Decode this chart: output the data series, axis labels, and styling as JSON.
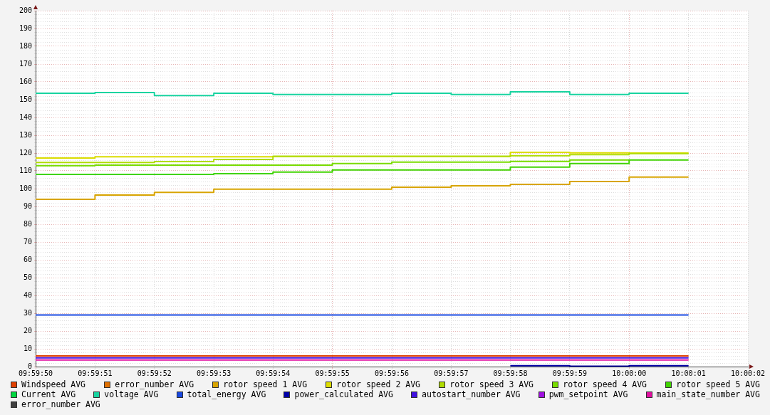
{
  "chart_data": {
    "type": "step",
    "x": [
      9.997222,
      9.9975,
      9.997778,
      9.998056,
      9.998333,
      9.998611,
      9.998889,
      9.999167,
      9.999444,
      9.999722,
      10,
      10.000278
    ],
    "xlim": [
      9.997222,
      10.000556
    ],
    "xticks": [
      {
        "value": 9.997222,
        "label": "09:59:50"
      },
      {
        "value": 9.9975,
        "label": "09:59:51"
      },
      {
        "value": 9.997778,
        "label": "09:59:52"
      },
      {
        "value": 9.998056,
        "label": "09:59:53"
      },
      {
        "value": 9.998333,
        "label": "09:59:54"
      },
      {
        "value": 9.998611,
        "label": "09:59:55"
      },
      {
        "value": 9.998889,
        "label": "09:59:56"
      },
      {
        "value": 9.999167,
        "label": "09:59:57"
      },
      {
        "value": 9.999444,
        "label": "09:59:58"
      },
      {
        "value": 9.999722,
        "label": "09:59:59"
      },
      {
        "value": 10,
        "label": "10:00:00"
      },
      {
        "value": 10.000278,
        "label": "10:00:01"
      },
      {
        "value": 10.000556,
        "label": "10:00:02"
      }
    ],
    "ylim": [
      0,
      200
    ],
    "yticks": [
      0,
      {
        "value": 2,
        "label": null
      },
      {
        "value": 4,
        "label": null
      },
      {
        "value": 6,
        "label": null
      },
      {
        "value": 8,
        "label": null
      },
      10,
      {
        "value": 12,
        "label": null
      },
      {
        "value": 14,
        "label": null
      },
      {
        "value": 16,
        "label": null
      },
      {
        "value": 18,
        "label": null
      },
      20,
      {
        "value": 22,
        "label": null
      },
      {
        "value": 24,
        "label": null
      },
      {
        "value": 26,
        "label": null
      },
      {
        "value": 28,
        "label": null
      },
      30,
      {
        "value": 32,
        "label": null
      },
      {
        "value": 34,
        "label": null
      },
      {
        "value": 36,
        "label": null
      },
      {
        "value": 38,
        "label": null
      },
      40,
      {
        "value": 42,
        "label": null
      },
      {
        "value": 44,
        "label": null
      },
      {
        "value": 46,
        "label": null
      },
      {
        "value": 48,
        "label": null
      },
      50,
      {
        "value": 52,
        "label": null
      },
      {
        "value": 54,
        "label": null
      },
      {
        "value": 56,
        "label": null
      },
      {
        "value": 58,
        "label": null
      },
      60,
      {
        "value": 62,
        "label": null
      },
      {
        "value": 64,
        "label": null
      },
      {
        "value": 66,
        "label": null
      },
      {
        "value": 68,
        "label": null
      },
      70,
      {
        "value": 72,
        "label": null
      },
      {
        "value": 74,
        "label": null
      },
      {
        "value": 76,
        "label": null
      },
      {
        "value": 78,
        "label": null
      },
      80,
      {
        "value": 82,
        "label": null
      },
      {
        "value": 84,
        "label": null
      },
      {
        "value": 86,
        "label": null
      },
      {
        "value": 88,
        "label": null
      },
      90,
      {
        "value": 92,
        "label": null
      },
      {
        "value": 94,
        "label": null
      },
      {
        "value": 96,
        "label": null
      },
      {
        "value": 98,
        "label": null
      },
      100,
      {
        "value": 102,
        "label": null
      },
      {
        "value": 104,
        "label": null
      },
      {
        "value": 106,
        "label": null
      },
      {
        "value": 108,
        "label": null
      },
      110,
      {
        "value": 112,
        "label": null
      },
      {
        "value": 114,
        "label": null
      },
      {
        "value": 116,
        "label": null
      },
      {
        "value": 118,
        "label": null
      },
      120,
      {
        "value": 122,
        "label": null
      },
      {
        "value": 124,
        "label": null
      },
      {
        "value": 126,
        "label": null
      },
      {
        "value": 128,
        "label": null
      },
      130,
      {
        "value": 132,
        "label": null
      },
      {
        "value": 134,
        "label": null
      },
      {
        "value": 136,
        "label": null
      },
      {
        "value": 138,
        "label": null
      },
      140,
      {
        "value": 142,
        "label": null
      },
      {
        "value": 144,
        "label": null
      },
      {
        "value": 146,
        "label": null
      },
      {
        "value": 148,
        "label": null
      },
      150,
      {
        "value": 152,
        "label": null
      },
      {
        "value": 154,
        "label": null
      },
      {
        "value": 156,
        "label": null
      },
      {
        "value": 158,
        "label": null
      },
      160,
      {
        "value": 162,
        "label": null
      },
      {
        "value": 164,
        "label": null
      },
      {
        "value": 166,
        "label": null
      },
      {
        "value": 168,
        "label": null
      },
      170,
      {
        "value": 172,
        "label": null
      },
      {
        "value": 174,
        "label": null
      },
      {
        "value": 176,
        "label": null
      },
      {
        "value": 178,
        "label": null
      },
      180,
      {
        "value": 182,
        "label": null
      },
      {
        "value": 184,
        "label": null
      },
      {
        "value": 186,
        "label": null
      },
      {
        "value": 188,
        "label": null
      },
      190,
      {
        "value": 192,
        "label": null
      },
      {
        "value": 194,
        "label": null
      },
      {
        "value": 196,
        "label": null
      },
      {
        "value": 198,
        "label": null
      },
      200
    ],
    "grid": true,
    "legend": "bottom",
    "series": [
      {
        "name": "Windspeed AVG",
        "color": "#e04000",
        "values": [
          6.0,
          6.0,
          6.0,
          6.0,
          6.0,
          6.0,
          6.0,
          6.0,
          6.0,
          6.0,
          6.0,
          6.0
        ]
      },
      {
        "name": "error_number AVG",
        "color": "#e07000",
        "values": [
          null,
          null,
          null,
          null,
          null,
          null,
          null,
          null,
          null,
          null,
          null,
          null
        ]
      },
      {
        "name": "rotor speed 1 AVG",
        "color": "#d8a400",
        "values": [
          94.0,
          96.4,
          97.9,
          99.7,
          99.7,
          99.7,
          100.8,
          101.6,
          102.4,
          104.0,
          106.5,
          106.5
        ]
      },
      {
        "name": "rotor speed 2 AVG",
        "color": "#dcdc00",
        "values": [
          117.2,
          117.9,
          117.9,
          117.9,
          118.0,
          118.0,
          118.0,
          118.0,
          120.4,
          120.1,
          120.0,
          120.0
        ]
      },
      {
        "name": "rotor speed 3 AVG",
        "color": "#b0dc00",
        "values": [
          114.7,
          114.7,
          115.2,
          116.4,
          118.2,
          118.2,
          118.2,
          118.2,
          118.5,
          119.1,
          119.7,
          119.7
        ]
      },
      {
        "name": "rotor speed 4 AVG",
        "color": "#78dc00",
        "values": [
          112.9,
          113.2,
          113.2,
          113.2,
          113.2,
          114.1,
          114.9,
          114.9,
          115.3,
          116.1,
          116.1,
          null
        ]
      },
      {
        "name": "rotor speed 5 AVG",
        "color": "#40d400",
        "values": [
          108.0,
          108.0,
          108.0,
          108.4,
          109.3,
          110.5,
          110.5,
          110.5,
          112.1,
          114.1,
          116.1,
          116.1
        ]
      },
      {
        "name": "Current AVG",
        "color": "#00d840",
        "values": [
          null,
          null,
          null,
          null,
          null,
          null,
          null,
          null,
          null,
          null,
          null,
          null
        ]
      },
      {
        "name": "voltage AVG",
        "color": "#18d4a0",
        "values": [
          153.6,
          154.0,
          152.3,
          153.6,
          152.9,
          152.9,
          153.6,
          152.9,
          154.4,
          152.9,
          153.6,
          153.6
        ]
      },
      {
        "name": "total_energy AVG",
        "color": "#1848e0",
        "values": [
          29.0,
          29.0,
          29.0,
          29.0,
          29.0,
          29.0,
          29.0,
          29.0,
          29.0,
          29.0,
          29.0,
          29.0
        ]
      },
      {
        "name": "power_calculated AVG",
        "color": "#0000a8",
        "values": [
          null,
          null,
          null,
          null,
          null,
          null,
          null,
          null,
          0.5,
          0.2,
          0.5,
          0.5
        ]
      },
      {
        "name": "autostart_number AVG",
        "color": "#4010e0",
        "values": [
          4.9,
          4.9,
          4.9,
          4.9,
          4.9,
          4.9,
          4.9,
          4.9,
          4.9,
          4.9,
          4.9,
          4.9
        ]
      },
      {
        "name": "pwm_setpoint AVG",
        "color": "#a010e0",
        "values": [
          null,
          null,
          null,
          null,
          null,
          null,
          null,
          null,
          null,
          null,
          null,
          null
        ]
      },
      {
        "name": "main_state_number AVG",
        "color": "#e010a0",
        "values": [
          3.7,
          3.7,
          3.7,
          3.7,
          3.7,
          3.7,
          3.7,
          3.7,
          3.7,
          3.7,
          3.7,
          3.7
        ]
      },
      {
        "name": "error_number AVG",
        "color": "#404040",
        "values": [
          null,
          null,
          null,
          null,
          null,
          null,
          null,
          null,
          null,
          null,
          null,
          null
        ]
      }
    ]
  }
}
